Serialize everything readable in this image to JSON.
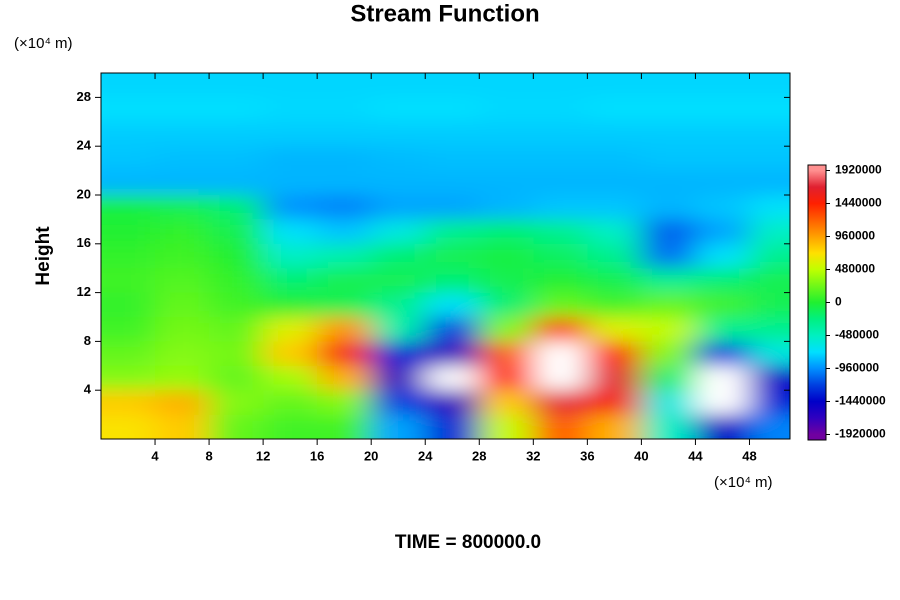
{
  "chart_data": {
    "type": "contour",
    "title": "Stream Function",
    "y_unit": "(×10⁴ m)",
    "x_unit": "(×10⁴ m)",
    "ylabel": "Height",
    "footer": "TIME = 800000.0",
    "xlim": [
      0,
      51
    ],
    "ylim": [
      0,
      30
    ],
    "xticks": [
      4,
      8,
      12,
      16,
      20,
      24,
      28,
      32,
      36,
      40,
      44,
      48
    ],
    "yticks": [
      4,
      8,
      12,
      16,
      20,
      24,
      28
    ],
    "field": {
      "x": [
        2,
        6,
        10,
        14,
        18,
        22,
        26,
        30,
        34,
        38,
        42,
        46,
        50
      ],
      "y": [
        29,
        27,
        25,
        23,
        21,
        19,
        17,
        15,
        13,
        11,
        9,
        7,
        5,
        3,
        1
      ],
      "z": [
        [
          -750000,
          -750000,
          -750000,
          -750000,
          -750000,
          -750000,
          -750000,
          -750000,
          -750000,
          -750000,
          -750000,
          -750000,
          -750000
        ],
        [
          -720000,
          -720000,
          -720000,
          -740000,
          -740000,
          -720000,
          -720000,
          -740000,
          -740000,
          -720000,
          -720000,
          -720000,
          -720000
        ],
        [
          -780000,
          -780000,
          -780000,
          -780000,
          -780000,
          -780000,
          -780000,
          -780000,
          -780000,
          -780000,
          -780000,
          -780000,
          -780000
        ],
        [
          -800000,
          -820000,
          -820000,
          -850000,
          -850000,
          -830000,
          -820000,
          -820000,
          -820000,
          -820000,
          -800000,
          -800000,
          -800000
        ],
        [
          -850000,
          -850000,
          -850000,
          -850000,
          -850000,
          -850000,
          -850000,
          -850000,
          -850000,
          -850000,
          -850000,
          -850000,
          -850000
        ],
        [
          -50000,
          -100000,
          -200000,
          -950000,
          -1000000,
          -900000,
          -900000,
          -850000,
          -800000,
          -800000,
          -850000,
          -800000,
          -700000
        ],
        [
          0,
          50000,
          -100000,
          -700000,
          -800000,
          -600000,
          -300000,
          -200000,
          -300000,
          -500000,
          -1100000,
          -900000,
          -500000
        ],
        [
          50000,
          100000,
          0,
          -500000,
          -400000,
          -200000,
          -100000,
          -50000,
          -150000,
          -300000,
          -1050000,
          -700000,
          -300000
        ],
        [
          100000,
          150000,
          50000,
          -200000,
          -100000,
          -100000,
          -200000,
          -100000,
          0,
          -100000,
          -300000,
          -200000,
          -100000
        ],
        [
          50000,
          200000,
          100000,
          0,
          -100000,
          -300000,
          -700000,
          -200000,
          200000,
          100000,
          200000,
          100000,
          -100000
        ],
        [
          100000,
          250000,
          200000,
          600000,
          1000000,
          -400000,
          -1200000,
          300000,
          1300000,
          600000,
          500000,
          -300000,
          -300000
        ],
        [
          200000,
          300000,
          250000,
          800000,
          1500000,
          -1300000,
          -1700000,
          1200000,
          2200000,
          1400000,
          300000,
          -1200000,
          -600000
        ],
        [
          300000,
          350000,
          200000,
          400000,
          900000,
          -1700000,
          -2200000,
          1400000,
          2500000,
          1700000,
          -200000,
          -2200000,
          -1500000
        ],
        [
          800000,
          900000,
          300000,
          200000,
          300000,
          -1200000,
          -1700000,
          800000,
          1700000,
          1500000,
          -600000,
          -2300000,
          -1300000
        ],
        [
          700000,
          800000,
          200000,
          100000,
          100000,
          -900000,
          -1300000,
          500000,
          1200000,
          900000,
          -500000,
          -1500000,
          -1000000
        ]
      ]
    },
    "colorbar": {
      "lim": [
        -2000000,
        2000000
      ],
      "ticks": [
        1920000,
        1440000,
        960000,
        480000,
        0,
        -480000,
        -960000,
        -1440000,
        -1920000
      ],
      "over_color": "#ffffff",
      "under_color": "#ffffff",
      "colormap": [
        {
          "value": -1920000,
          "color": "#7000a0"
        },
        {
          "value": -1680000,
          "color": "#3000c0"
        },
        {
          "value": -1440000,
          "color": "#0000c8"
        },
        {
          "value": -1200000,
          "color": "#0040e0"
        },
        {
          "value": -960000,
          "color": "#0090ff"
        },
        {
          "value": -720000,
          "color": "#00e0ff"
        },
        {
          "value": -480000,
          "color": "#00f0c0"
        },
        {
          "value": -240000,
          "color": "#00f080"
        },
        {
          "value": 0,
          "color": "#20f030"
        },
        {
          "value": 480000,
          "color": "#c0ff00"
        },
        {
          "value": 720000,
          "color": "#ffe000"
        },
        {
          "value": 960000,
          "color": "#ffa000"
        },
        {
          "value": 1200000,
          "color": "#ff6000"
        },
        {
          "value": 1440000,
          "color": "#ff2000"
        },
        {
          "value": 1680000,
          "color": "#e02030"
        },
        {
          "value": 1920000,
          "color": "#ff9090"
        }
      ]
    }
  }
}
